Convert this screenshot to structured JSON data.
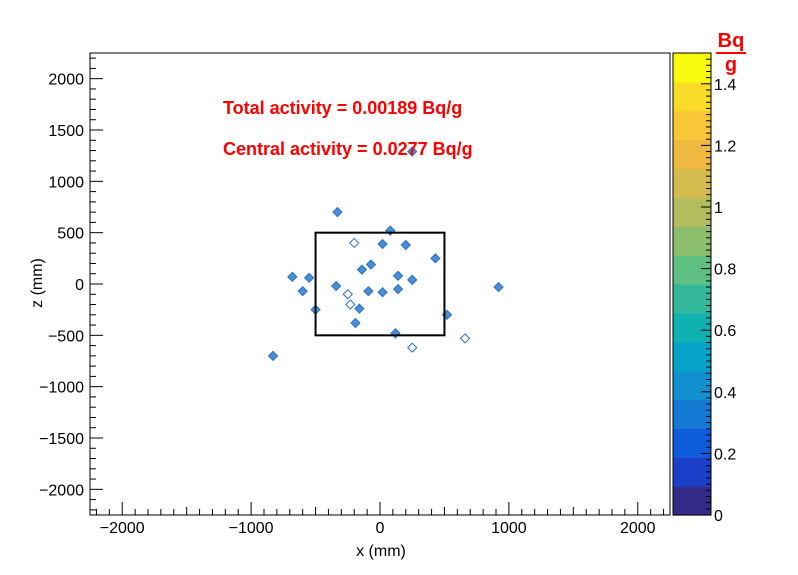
{
  "chart_data": {
    "type": "heatmap",
    "title": "",
    "xlabel": "x (mm)",
    "ylabel": "z (mm)",
    "xlim": [
      -2250,
      2250
    ],
    "ylim": [
      -2250,
      2250
    ],
    "x_ticks": [
      -2000,
      -1000,
      0,
      1000,
      2000
    ],
    "x_tick_labels": [
      "−2000",
      "−1000",
      "0",
      "1000",
      "2000"
    ],
    "y_ticks": [
      -2000,
      -1500,
      -1000,
      -500,
      0,
      500,
      1000,
      1500,
      2000
    ],
    "y_tick_labels": [
      "−2000",
      "−1500",
      "−1000",
      "−500",
      "0",
      "500",
      "1000",
      "1500",
      "2000"
    ],
    "grid": false,
    "annotations": [
      "Total activity = 0.00189 Bq/g",
      "Central activity = 0.0277 Bq/g"
    ],
    "central_region": {
      "x": [
        -500,
        500
      ],
      "z": [
        -500,
        500
      ]
    },
    "colorbar": {
      "unit_numerator": "Bq",
      "unit_denominator": "g",
      "range": [
        0,
        1.5
      ],
      "ticks": [
        0,
        0.2,
        0.4,
        0.6,
        0.8,
        1,
        1.2,
        1.4
      ],
      "tick_labels": [
        "0",
        "0.2",
        "0.4",
        "0.6",
        "0.8",
        "1",
        "1.2",
        "1.4"
      ]
    },
    "points": [
      {
        "x": -330,
        "z": 700,
        "v": 0.4,
        "style": "fill"
      },
      {
        "x": 250,
        "z": 1290,
        "v": 0.4,
        "style": "fill"
      },
      {
        "x": 80,
        "z": 520,
        "v": 0.4,
        "style": "fill"
      },
      {
        "x": -200,
        "z": 400,
        "v": 0.4,
        "style": "open"
      },
      {
        "x": 20,
        "z": 390,
        "v": 0.4,
        "style": "fill"
      },
      {
        "x": 200,
        "z": 380,
        "v": 0.4,
        "style": "fill"
      },
      {
        "x": 430,
        "z": 250,
        "v": 0.4,
        "style": "fill"
      },
      {
        "x": -680,
        "z": 70,
        "v": 0.4,
        "style": "fill"
      },
      {
        "x": -550,
        "z": 60,
        "v": 0.4,
        "style": "fill"
      },
      {
        "x": -600,
        "z": -70,
        "v": 0.4,
        "style": "fill"
      },
      {
        "x": -340,
        "z": -20,
        "v": 0.4,
        "style": "fill"
      },
      {
        "x": -250,
        "z": -100,
        "v": 0.4,
        "style": "open"
      },
      {
        "x": -140,
        "z": 140,
        "v": 0.4,
        "style": "fill"
      },
      {
        "x": -70,
        "z": 190,
        "v": 0.4,
        "style": "fill"
      },
      {
        "x": -90,
        "z": -70,
        "v": 0.4,
        "style": "fill"
      },
      {
        "x": 20,
        "z": -80,
        "v": 0.4,
        "style": "fill"
      },
      {
        "x": 140,
        "z": 80,
        "v": 0.4,
        "style": "fill"
      },
      {
        "x": 250,
        "z": 40,
        "v": 0.4,
        "style": "fill"
      },
      {
        "x": 140,
        "z": -50,
        "v": 0.4,
        "style": "fill"
      },
      {
        "x": -230,
        "z": -200,
        "v": 0.4,
        "style": "open"
      },
      {
        "x": -160,
        "z": -240,
        "v": 0.4,
        "style": "fill"
      },
      {
        "x": -190,
        "z": -380,
        "v": 0.4,
        "style": "fill"
      },
      {
        "x": -500,
        "z": -250,
        "v": 0.4,
        "style": "fill"
      },
      {
        "x": 120,
        "z": -480,
        "v": 0.4,
        "style": "fill"
      },
      {
        "x": 520,
        "z": -300,
        "v": 0.4,
        "style": "fill"
      },
      {
        "x": 250,
        "z": -620,
        "v": 0.4,
        "style": "open"
      },
      {
        "x": 660,
        "z": -530,
        "v": 0.4,
        "style": "open"
      },
      {
        "x": 920,
        "z": -30,
        "v": 0.4,
        "style": "fill"
      },
      {
        "x": -830,
        "z": -700,
        "v": 0.4,
        "style": "fill"
      }
    ]
  },
  "colors": {
    "annotation": "#ff0000",
    "marker_fill": "#4a8fd6",
    "marker_stroke": "#2a6fc0",
    "palette": [
      "#352a87",
      "#1c3fc9",
      "#0f5cdd",
      "#1379d2",
      "#1191cf",
      "#07a3c8",
      "#10b1b1",
      "#33b89c",
      "#5ebf82",
      "#8dbe6c",
      "#b4bd5d",
      "#d3bb4e",
      "#efb83f",
      "#f9c637",
      "#f9dc27",
      "#f9fb0e"
    ]
  }
}
